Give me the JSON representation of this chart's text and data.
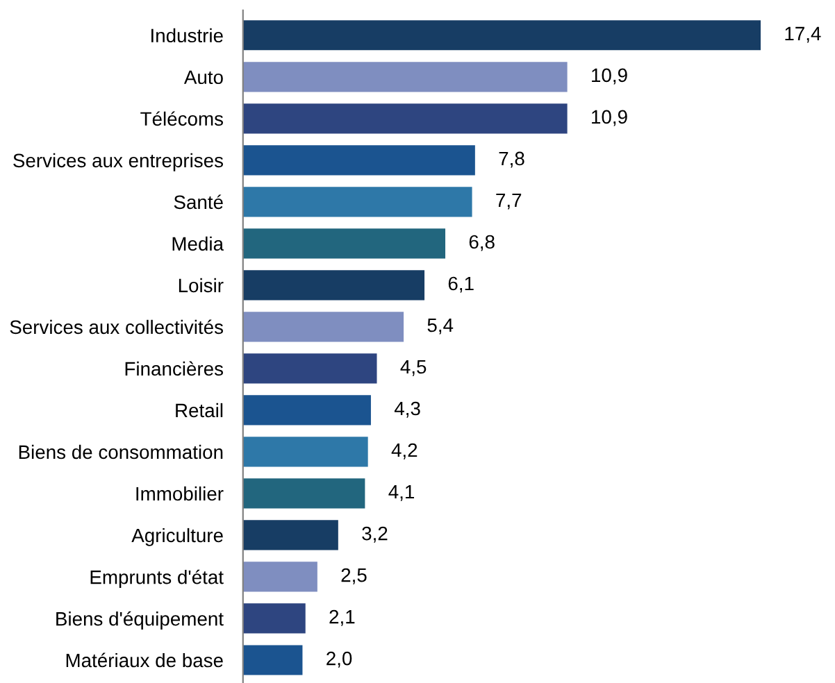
{
  "chart_data": {
    "type": "bar",
    "orientation": "horizontal",
    "value_labels": [
      "17,4",
      "10,9",
      "10,9",
      "7,8",
      "7,7",
      "6,8",
      "6,1",
      "5,4",
      "4,5",
      "4,3",
      "4,2",
      "4,1",
      "3,2",
      "2,5",
      "2,1",
      "2,0"
    ],
    "grid": false,
    "legend": false,
    "categories": [
      "Industrie",
      "Auto",
      "Télécoms",
      "Services aux entreprises",
      "Santé",
      "Media",
      "Loisir",
      "Services aux collectivités",
      "Financières",
      "Retail",
      "Biens de consommation",
      "Immobilier",
      "Agriculture",
      "Emprunts d'état",
      "Biens d'équipement",
      "Matériaux de base"
    ],
    "values": [
      17.4,
      10.9,
      10.9,
      7.8,
      7.7,
      6.8,
      6.1,
      5.4,
      4.5,
      4.3,
      4.2,
      4.1,
      3.2,
      2.5,
      2.1,
      2.0
    ],
    "colors": [
      "#173d64",
      "#7f8ec0",
      "#2e4580",
      "#1b5490",
      "#2e78a8",
      "#22667e",
      "#173d64",
      "#7f8ec0",
      "#2e4580",
      "#1b5490",
      "#2e78a8",
      "#22667e",
      "#173d64",
      "#7f8ec0",
      "#2e4580",
      "#1b5490"
    ]
  }
}
